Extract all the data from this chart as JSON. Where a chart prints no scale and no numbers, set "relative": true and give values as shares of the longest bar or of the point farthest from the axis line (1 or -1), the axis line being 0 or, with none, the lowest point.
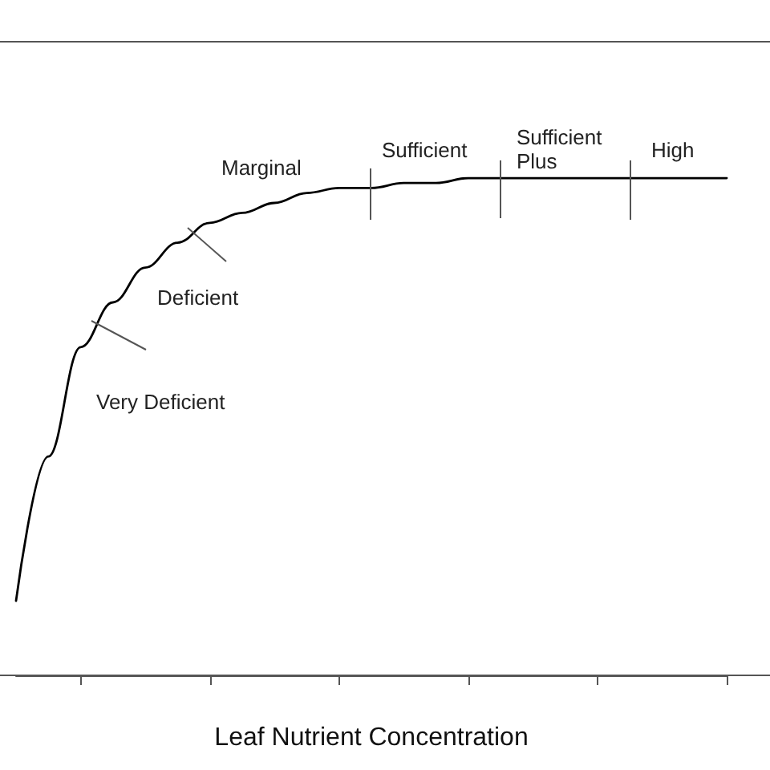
{
  "chart_data": {
    "type": "line",
    "relative": true,
    "xlabel": "Leaf Nutrient Concentration",
    "categories": [
      null,
      null,
      null,
      null,
      null,
      null,
      null,
      null,
      null,
      null,
      null,
      null,
      null,
      null,
      null,
      null,
      null,
      null,
      null,
      null,
      null,
      null,
      null
    ],
    "series": [
      {
        "color": "#000000",
        "values": [
          0.15,
          0.44,
          0.66,
          0.75,
          0.82,
          0.87,
          0.91,
          0.93,
          0.95,
          0.97,
          0.98,
          0.98,
          0.99,
          0.99,
          1.0,
          1.0,
          1.0,
          1.0,
          1.0,
          1.0,
          1.0,
          1.0,
          1.0
        ]
      }
    ],
    "annotations": [
      "Very Deficient",
      "Deficient",
      "Marginal",
      "Sufficient",
      "Sufficient\nPlus",
      "High"
    ],
    "grid": false,
    "marker": "none",
    "line_style": "solid"
  }
}
